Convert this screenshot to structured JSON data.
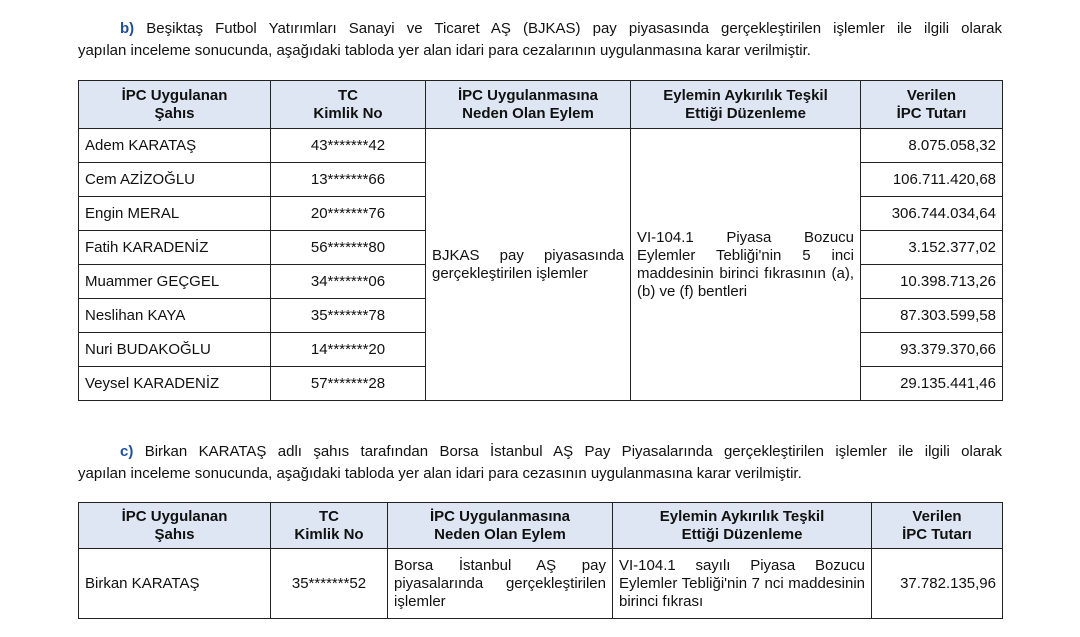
{
  "section_b": {
    "label": "b)",
    "line1": "Beşiktaş Futbol Yatırımları Sanayi ve Ticaret AŞ (BJKAS) pay piyasasında gerçekleştirilen işlemler ile ilgili olarak",
    "line2": "yapılan inceleme sonucunda, aşağıdaki tabloda yer alan idari para cezalarının uygulanmasına karar verilmiştir.",
    "headers": [
      [
        "İPC Uygulanan",
        "Şahıs"
      ],
      [
        "TC",
        "Kimlik No"
      ],
      [
        "İPC Uygulanmasına",
        "Neden Olan Eylem"
      ],
      [
        "Eylemin Aykırılık Teşkil",
        "Ettiği Düzenleme"
      ],
      [
        "Verilen",
        "İPC Tutarı"
      ]
    ],
    "action": "BJKAS pay piyasasında gerçekleştirilen işlemler",
    "regulation": "VI-104.1 Piyasa Bozucu Eylemler Tebliği'nin 5 inci maddesinin birinci fıkrasının (a),(b) ve (f) bentleri",
    "rows": [
      {
        "name": "Adem KARATAŞ",
        "tc": "43*******42",
        "amount": "8.075.058,32"
      },
      {
        "name": "Cem AZİZOĞLU",
        "tc": "13*******66",
        "amount": "106.711.420,68"
      },
      {
        "name": "Engin MERAL",
        "tc": "20*******76",
        "amount": "306.744.034,64"
      },
      {
        "name": "Fatih KARADENİZ",
        "tc": "56*******80",
        "amount": "3.152.377,02"
      },
      {
        "name": "Muammer GEÇGEL",
        "tc": "34*******06",
        "amount": "10.398.713,26"
      },
      {
        "name": "Neslihan KAYA",
        "tc": "35*******78",
        "amount": "87.303.599,58"
      },
      {
        "name": "Nuri BUDAKOĞLU",
        "tc": "14*******20",
        "amount": "93.379.370,66"
      },
      {
        "name": "Veysel KARADENİZ",
        "tc": "57*******28",
        "amount": "29.135.441,46"
      }
    ]
  },
  "section_c": {
    "label": "c)",
    "line1": "Birkan KARATAŞ adlı şahıs tarafından Borsa İstanbul AŞ Pay Piyasalarında gerçekleştirilen işlemler ile ilgili olarak",
    "line2": "yapılan inceleme sonucunda, aşağıdaki tabloda yer alan idari para cezasının uygulanmasına karar verilmiştir.",
    "headers": [
      [
        "İPC Uygulanan",
        "Şahıs"
      ],
      [
        "TC",
        "Kimlik No"
      ],
      [
        "İPC Uygulanmasına",
        "Neden Olan Eylem"
      ],
      [
        "Eylemin Aykırılık Teşkil",
        "Ettiği Düzenleme"
      ],
      [
        "Verilen",
        "İPC Tutarı"
      ]
    ],
    "row": {
      "name": "Birkan KARATAŞ",
      "tc": "35*******52",
      "action": "Borsa İstanbul AŞ pay piyasalarında gerçekleştirilen işlemler",
      "regulation": "VI-104.1 sayılı Piyasa Bozucu Eylemler Tebliği'nin 7 nci maddesinin birinci fıkrası",
      "amount": "37.782.135,96"
    }
  },
  "colors": {
    "header_bg": "#dde6f2",
    "label": "#1f4e9c"
  }
}
